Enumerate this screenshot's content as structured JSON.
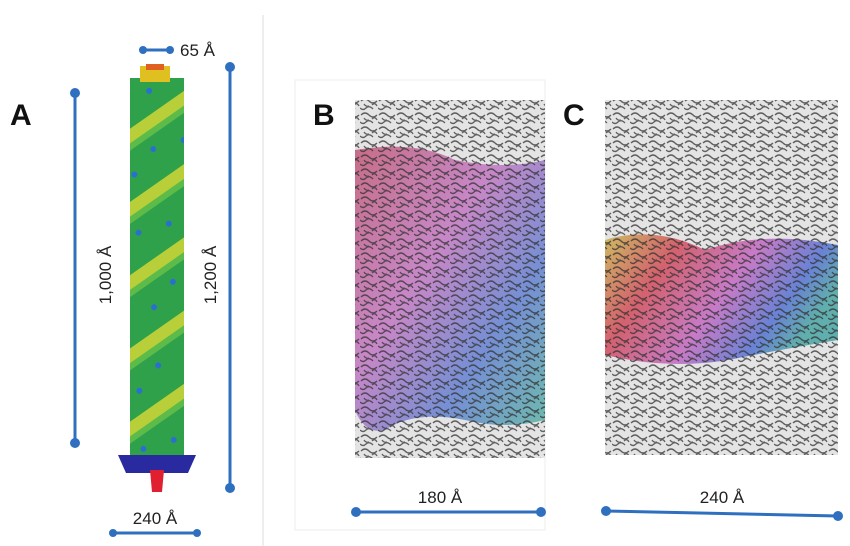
{
  "panels": [
    {
      "label": "A",
      "dimensions": [
        "65 Å",
        "1,000 Å",
        "1,200 Å",
        "240 Å"
      ]
    },
    {
      "label": "B",
      "dimensions": [
        "180 Å"
      ]
    },
    {
      "label": "C",
      "dimensions": [
        "240 Å"
      ]
    }
  ]
}
